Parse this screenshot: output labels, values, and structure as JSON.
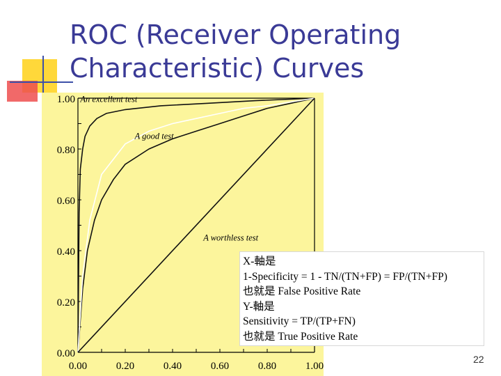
{
  "slide": {
    "title_lines": [
      "ROC (Receiver Operating",
      "Characteristic) Curves"
    ],
    "page_number": "22",
    "info_lines": [
      "X-軸是",
      " 1-Specificity = 1 - TN/(TN+FP) = FP/(TN+FP)",
      "也就是 False Positive Rate",
      "Y-軸是",
      " Sensitivity = TP/(TP+FN)",
      "也就是 True Positive Rate"
    ],
    "colors": {
      "title": "#3a3a96",
      "chart_background": "#fcf59c",
      "deco_yellow": "#ffd83a",
      "deco_red": "#ee4f4f",
      "deco_blue": "#3c50a8"
    }
  },
  "chart_data": {
    "type": "line",
    "xlim": [
      0,
      1
    ],
    "ylim": [
      0,
      1
    ],
    "x_ticks": [
      "0.00",
      "0.20",
      "0.40",
      "0.60",
      "0.80",
      "1.00"
    ],
    "y_ticks": [
      "0.00",
      "0.20",
      "0.40",
      "0.60",
      "0.80",
      "1.00"
    ],
    "annotations": [
      "An excellent test",
      "A good test",
      "A worthless test"
    ],
    "series": [
      {
        "x": [
          0,
          0.005,
          0.01,
          0.02,
          0.03,
          0.05,
          0.08,
          0.12,
          0.2,
          0.35,
          0.55,
          0.75,
          1.0
        ],
        "y": [
          0,
          0.55,
          0.72,
          0.8,
          0.85,
          0.89,
          0.92,
          0.94,
          0.955,
          0.97,
          0.98,
          0.99,
          1.0
        ]
      },
      {
        "x": [
          0,
          0.02,
          0.04,
          0.07,
          0.1,
          0.15,
          0.2,
          0.3,
          0.4,
          0.5,
          0.6,
          0.7,
          0.8,
          0.9,
          1.0
        ],
        "y": [
          0,
          0.25,
          0.4,
          0.52,
          0.6,
          0.68,
          0.74,
          0.8,
          0.84,
          0.87,
          0.9,
          0.93,
          0.96,
          0.98,
          1.0
        ]
      },
      {
        "x": [
          0,
          0.02,
          0.05,
          0.1,
          0.2,
          0.3,
          0.4,
          0.5,
          0.6,
          0.7,
          0.8,
          0.9,
          1.0
        ],
        "y": [
          0,
          0.3,
          0.52,
          0.7,
          0.82,
          0.87,
          0.9,
          0.92,
          0.94,
          0.96,
          0.97,
          0.985,
          1.0
        ]
      },
      {
        "x": [
          0,
          1
        ],
        "y": [
          0,
          1
        ]
      }
    ],
    "grid": false
  }
}
